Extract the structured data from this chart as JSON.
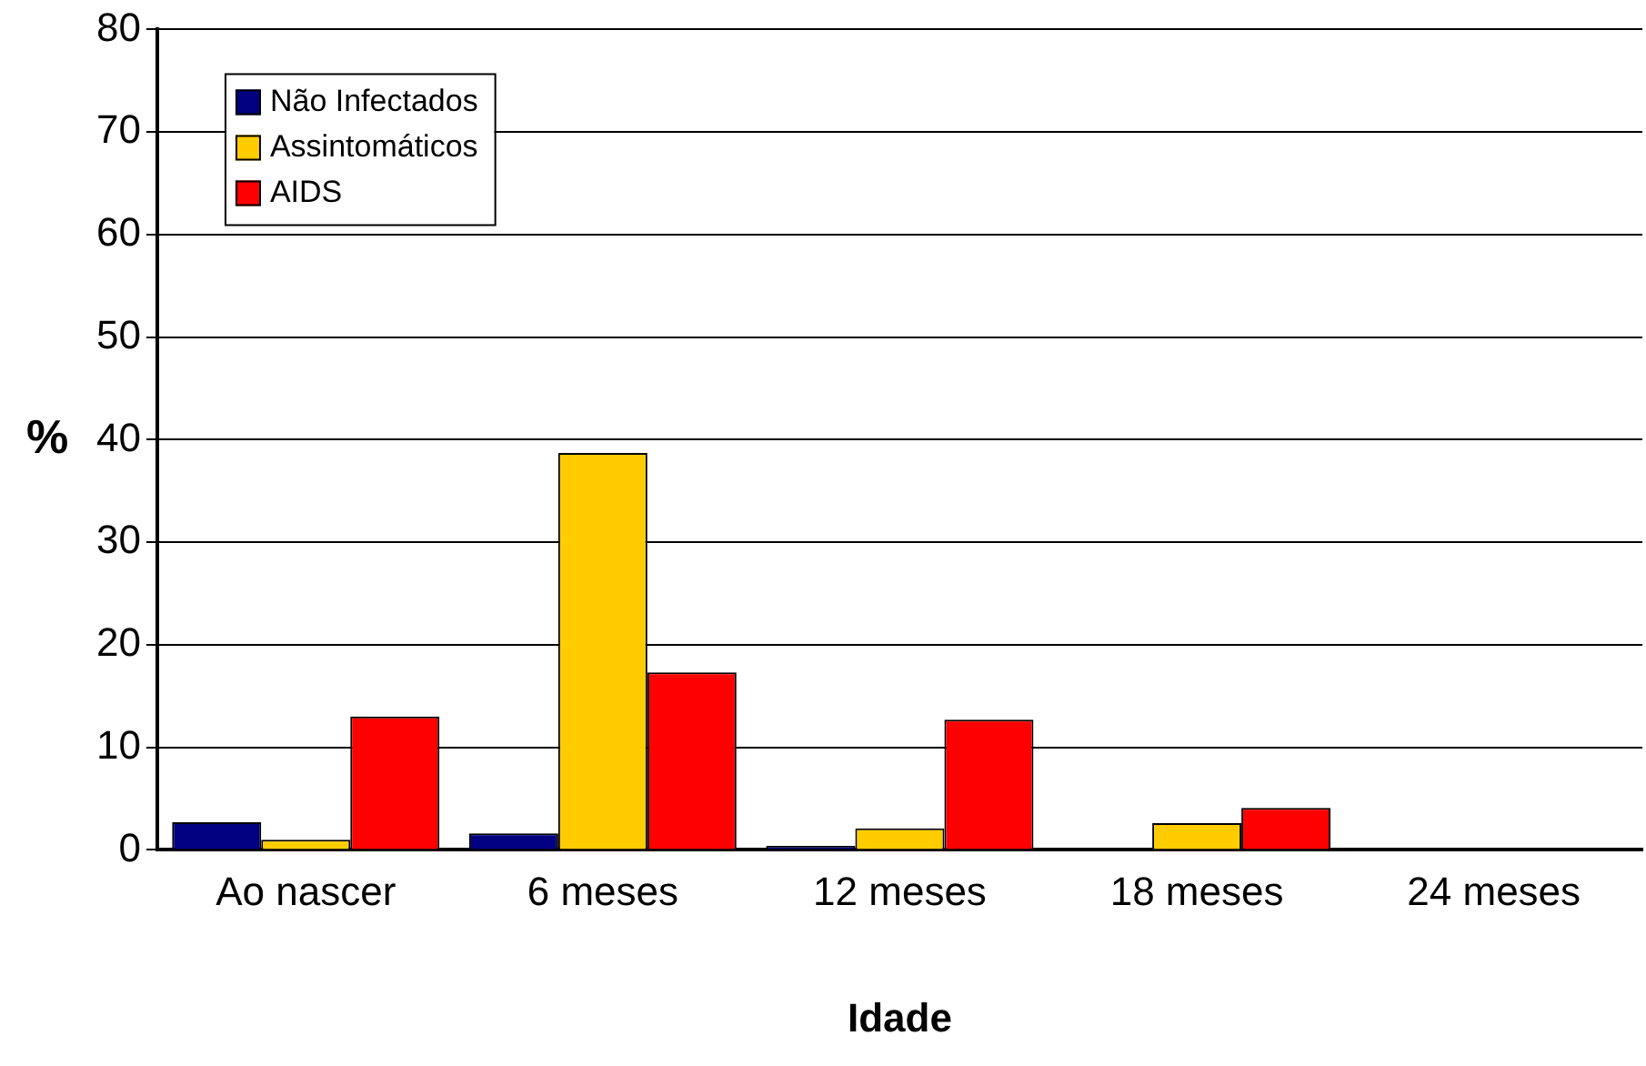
{
  "chart_data": {
    "type": "bar",
    "xlabel": "Idade",
    "ylabel": "%",
    "categories": [
      "Ao nascer",
      "6 meses",
      "12 meses",
      "18 meses",
      "24 meses"
    ],
    "series": [
      {
        "name": "Não Infectados",
        "color": "#000080",
        "values": [
          2.7,
          1.6,
          0.4,
          0.1,
          0
        ]
      },
      {
        "name": "Assintomáticos",
        "color": "#ffcc00",
        "values": [
          1.0,
          38.7,
          2.1,
          2.6,
          0
        ]
      },
      {
        "name": "AIDS",
        "color": "#ff0000",
        "values": [
          13.0,
          17.3,
          12.7,
          4.1,
          0
        ]
      }
    ],
    "ylim": [
      0,
      80
    ],
    "yticks": [
      0,
      10,
      20,
      30,
      40,
      50,
      60,
      70,
      80
    ],
    "grid": "y",
    "legend": "top left"
  }
}
